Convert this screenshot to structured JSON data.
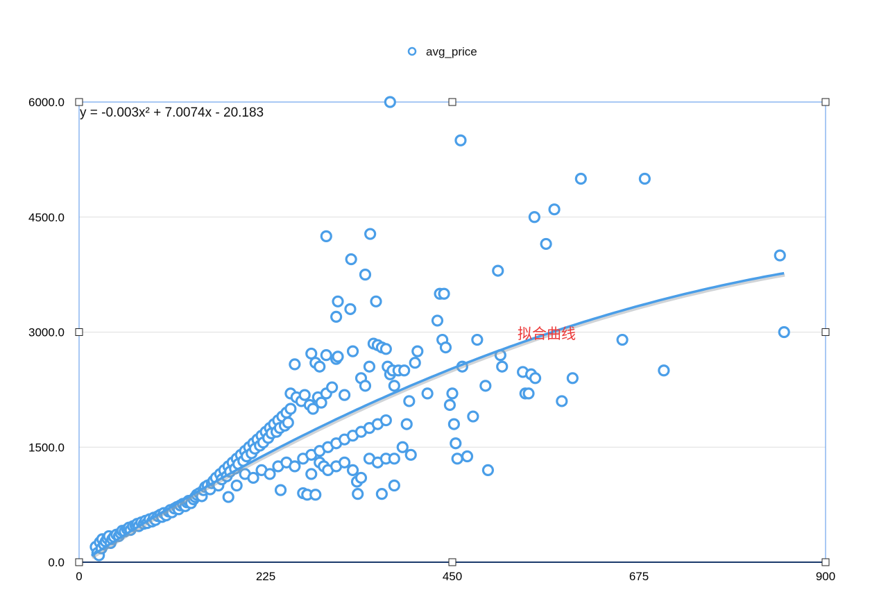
{
  "chart_data": {
    "type": "scatter",
    "legend": {
      "label": "avg_price",
      "position": "top-center"
    },
    "series": [
      {
        "name": "avg_price",
        "color": "#4a9ee8",
        "points": [
          [
            20,
            200
          ],
          [
            22,
            120
          ],
          [
            24,
            90
          ],
          [
            25,
            260
          ],
          [
            27,
            180
          ],
          [
            28,
            300
          ],
          [
            30,
            230
          ],
          [
            32,
            270
          ],
          [
            34,
            310
          ],
          [
            36,
            340
          ],
          [
            38,
            250
          ],
          [
            40,
            300
          ],
          [
            42,
            330
          ],
          [
            45,
            360
          ],
          [
            48,
            340
          ],
          [
            50,
            380
          ],
          [
            52,
            410
          ],
          [
            55,
            400
          ],
          [
            58,
            430
          ],
          [
            60,
            450
          ],
          [
            62,
            420
          ],
          [
            65,
            470
          ],
          [
            68,
            480
          ],
          [
            70,
            500
          ],
          [
            72,
            470
          ],
          [
            75,
            520
          ],
          [
            78,
            500
          ],
          [
            80,
            540
          ],
          [
            82,
            510
          ],
          [
            85,
            560
          ],
          [
            88,
            530
          ],
          [
            90,
            580
          ],
          [
            92,
            550
          ],
          [
            95,
            600
          ],
          [
            98,
            620
          ],
          [
            100,
            590
          ],
          [
            102,
            640
          ],
          [
            105,
            610
          ],
          [
            108,
            660
          ],
          [
            110,
            680
          ],
          [
            112,
            650
          ],
          [
            115,
            700
          ],
          [
            118,
            720
          ],
          [
            120,
            690
          ],
          [
            122,
            740
          ],
          [
            125,
            760
          ],
          [
            128,
            730
          ],
          [
            130,
            780
          ],
          [
            132,
            800
          ],
          [
            135,
            770
          ],
          [
            138,
            820
          ],
          [
            140,
            850
          ],
          [
            142,
            880
          ],
          [
            145,
            900
          ],
          [
            148,
            860
          ],
          [
            150,
            940
          ],
          [
            152,
            980
          ],
          [
            155,
            1000
          ],
          [
            158,
            950
          ],
          [
            160,
            1030
          ],
          [
            162,
            1060
          ],
          [
            165,
            1100
          ],
          [
            168,
            1000
          ],
          [
            170,
            1150
          ],
          [
            172,
            1080
          ],
          [
            175,
            1200
          ],
          [
            178,
            1120
          ],
          [
            180,
            1250
          ],
          [
            182,
            1180
          ],
          [
            185,
            1300
          ],
          [
            188,
            1220
          ],
          [
            190,
            1350
          ],
          [
            192,
            1280
          ],
          [
            195,
            1400
          ],
          [
            198,
            1320
          ],
          [
            200,
            1450
          ],
          [
            202,
            1380
          ],
          [
            205,
            1500
          ],
          [
            208,
            1420
          ],
          [
            210,
            1550
          ],
          [
            212,
            1480
          ],
          [
            215,
            1600
          ],
          [
            218,
            1520
          ],
          [
            220,
            1650
          ],
          [
            222,
            1560
          ],
          [
            225,
            1700
          ],
          [
            228,
            1620
          ],
          [
            230,
            1750
          ],
          [
            232,
            1680
          ],
          [
            235,
            1800
          ],
          [
            238,
            1700
          ],
          [
            240,
            1850
          ],
          [
            242,
            1750
          ],
          [
            245,
            1900
          ],
          [
            248,
            1780
          ],
          [
            250,
            1950
          ],
          [
            252,
            1820
          ],
          [
            255,
            2000
          ],
          [
            180,
            850
          ],
          [
            190,
            1000
          ],
          [
            200,
            1150
          ],
          [
            210,
            1100
          ],
          [
            220,
            1200
          ],
          [
            230,
            1150
          ],
          [
            240,
            1250
          ],
          [
            250,
            1300
          ],
          [
            260,
            1250
          ],
          [
            270,
            1350
          ],
          [
            280,
            1400
          ],
          [
            290,
            1450
          ],
          [
            300,
            1500
          ],
          [
            310,
            1550
          ],
          [
            320,
            1600
          ],
          [
            330,
            1650
          ],
          [
            340,
            1700
          ],
          [
            350,
            1750
          ],
          [
            360,
            1800
          ],
          [
            370,
            1850
          ],
          [
            243,
            940
          ],
          [
            270,
            900
          ],
          [
            275,
            880
          ],
          [
            280,
            1150
          ],
          [
            285,
            880
          ],
          [
            290,
            1300
          ],
          [
            295,
            1250
          ],
          [
            300,
            1200
          ],
          [
            310,
            1250
          ],
          [
            320,
            1300
          ],
          [
            330,
            1200
          ],
          [
            335,
            1050
          ],
          [
            340,
            1100
          ],
          [
            350,
            1350
          ],
          [
            360,
            1300
          ],
          [
            370,
            1350
          ],
          [
            380,
            1350
          ],
          [
            390,
            1500
          ],
          [
            400,
            1400
          ],
          [
            395,
            1800
          ],
          [
            255,
            2200
          ],
          [
            262,
            2150
          ],
          [
            268,
            2100
          ],
          [
            272,
            2180
          ],
          [
            278,
            2050
          ],
          [
            282,
            2000
          ],
          [
            288,
            2150
          ],
          [
            292,
            2080
          ],
          [
            298,
            2200
          ],
          [
            305,
            2280
          ],
          [
            260,
            2580
          ],
          [
            280,
            2720
          ],
          [
            285,
            2600
          ],
          [
            290,
            2550
          ],
          [
            298,
            2700
          ],
          [
            310,
            2650
          ],
          [
            312,
            2680
          ],
          [
            320,
            2180
          ],
          [
            330,
            2750
          ],
          [
            340,
            2400
          ],
          [
            345,
            2300
          ],
          [
            350,
            2550
          ],
          [
            355,
            2850
          ],
          [
            360,
            2830
          ],
          [
            365,
            2800
          ],
          [
            370,
            2780
          ],
          [
            372,
            2550
          ],
          [
            375,
            2450
          ],
          [
            378,
            2500
          ],
          [
            380,
            2300
          ],
          [
            385,
            2500
          ],
          [
            392,
            2500
          ],
          [
            398,
            2100
          ],
          [
            405,
            2600
          ],
          [
            408,
            2750
          ],
          [
            420,
            2200
          ],
          [
            432,
            3150
          ],
          [
            435,
            3500
          ],
          [
            438,
            2900
          ],
          [
            442,
            2800
          ],
          [
            447,
            2050
          ],
          [
            450,
            2200
          ],
          [
            452,
            1800
          ],
          [
            454,
            1550
          ],
          [
            456,
            1350
          ],
          [
            462,
            2550
          ],
          [
            468,
            1380
          ],
          [
            475,
            1900
          ],
          [
            480,
            2900
          ],
          [
            490,
            2300
          ],
          [
            493,
            1200
          ],
          [
            505,
            3800
          ],
          [
            508,
            2700
          ],
          [
            510,
            2550
          ],
          [
            535,
            2480
          ],
          [
            538,
            2200
          ],
          [
            542,
            2200
          ],
          [
            545,
            2450
          ],
          [
            550,
            2400
          ],
          [
            595,
            2400
          ],
          [
            310,
            3200
          ],
          [
            312,
            3400
          ],
          [
            327,
            3300
          ],
          [
            328,
            3950
          ],
          [
            345,
            3750
          ],
          [
            351,
            4280
          ],
          [
            358,
            3400
          ],
          [
            298,
            4250
          ],
          [
            440,
            3500
          ],
          [
            549,
            4500
          ],
          [
            563,
            4150
          ],
          [
            573,
            4600
          ],
          [
            582,
            2100
          ],
          [
            605,
            5000
          ],
          [
            460,
            5500
          ],
          [
            375,
            6000
          ],
          [
            682,
            5000
          ],
          [
            655,
            2900
          ],
          [
            705,
            2500
          ],
          [
            845,
            4000
          ],
          [
            850,
            3000
          ],
          [
            365,
            890
          ],
          [
            380,
            1000
          ],
          [
            336,
            890
          ]
        ]
      }
    ],
    "trendline": {
      "equation": "y = -0.003x² + 7.0074x - 20.183",
      "a": -0.003,
      "b": 7.0074,
      "c": -20.183,
      "x_range": [
        15,
        850
      ],
      "label": "拟合曲线",
      "color": "#4a9ee8"
    },
    "xlim": [
      0,
      900
    ],
    "ylim": [
      0,
      6000
    ],
    "x_ticks": [
      "0",
      "225",
      "450",
      "675",
      "900"
    ],
    "y_ticks": [
      "0.0",
      "1500.0",
      "3000.0",
      "4500.0",
      "6000.0"
    ],
    "grid": "horizontal"
  }
}
